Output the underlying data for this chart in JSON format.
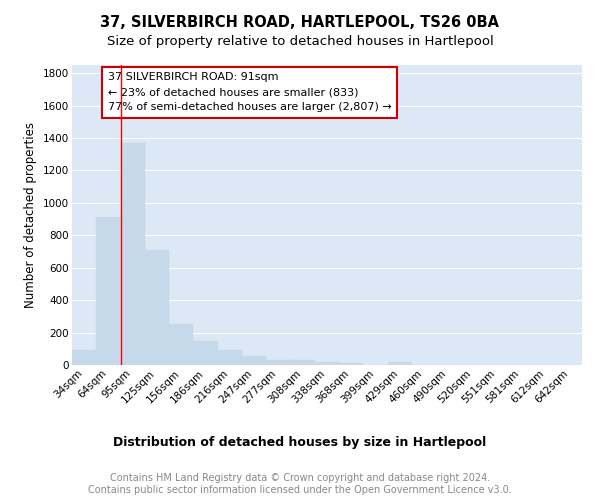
{
  "title1": "37, SILVERBIRCH ROAD, HARTLEPOOL, TS26 0BA",
  "title2": "Size of property relative to detached houses in Hartlepool",
  "xlabel": "Distribution of detached houses by size in Hartlepool",
  "ylabel": "Number of detached properties",
  "categories": [
    "34sqm",
    "64sqm",
    "95sqm",
    "125sqm",
    "156sqm",
    "186sqm",
    "216sqm",
    "247sqm",
    "277sqm",
    "308sqm",
    "338sqm",
    "368sqm",
    "399sqm",
    "429sqm",
    "460sqm",
    "490sqm",
    "520sqm",
    "551sqm",
    "581sqm",
    "612sqm",
    "642sqm"
  ],
  "values": [
    90,
    910,
    1370,
    710,
    250,
    145,
    95,
    55,
    28,
    32,
    18,
    12,
    0,
    18,
    0,
    0,
    0,
    0,
    0,
    0,
    0
  ],
  "bar_color": "#c5d9ea",
  "bar_edge_color": "#c5d9ea",
  "bg_color": "#dce8f5",
  "grid_color": "#ffffff",
  "red_line_index": 2,
  "annotation_text": "37 SILVERBIRCH ROAD: 91sqm\n← 23% of detached houses are smaller (833)\n77% of semi-detached houses are larger (2,807) →",
  "annotation_box_color": "#ffffff",
  "annotation_box_edge": "#cc0000",
  "ylim": [
    0,
    1850
  ],
  "yticks": [
    0,
    200,
    400,
    600,
    800,
    1000,
    1200,
    1400,
    1600,
    1800
  ],
  "footer": "Contains HM Land Registry data © Crown copyright and database right 2024.\nContains public sector information licensed under the Open Government Licence v3.0.",
  "title1_fontsize": 10.5,
  "title2_fontsize": 9.5,
  "xlabel_fontsize": 9,
  "ylabel_fontsize": 8.5,
  "tick_fontsize": 7.5,
  "annotation_fontsize": 8,
  "footer_fontsize": 7
}
